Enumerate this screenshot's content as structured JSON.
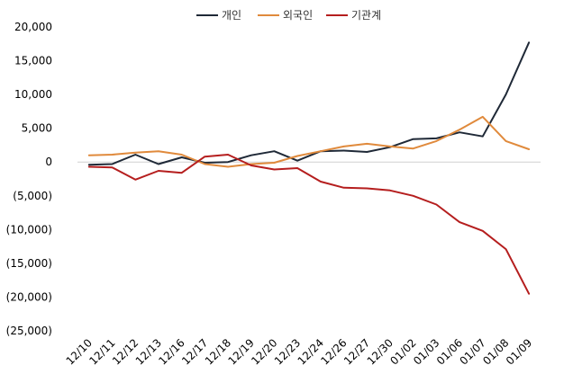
{
  "chart_data": {
    "type": "line",
    "title": "",
    "xlabel": "",
    "ylabel": "",
    "categories": [
      "12/10",
      "12/11",
      "12/12",
      "12/13",
      "12/16",
      "12/17",
      "12/18",
      "12/19",
      "12/20",
      "12/23",
      "12/24",
      "12/26",
      "12/27",
      "12/30",
      "01/02",
      "01/03",
      "01/06",
      "01/07",
      "01/08",
      "01/09"
    ],
    "series": [
      {
        "name": "개인",
        "color": "#1f2937",
        "values": [
          -400,
          -300,
          1100,
          -300,
          700,
          -100,
          0,
          1000,
          1600,
          200,
          1600,
          1700,
          1500,
          2200,
          3400,
          3500,
          4400,
          3800,
          10000,
          17700
        ]
      },
      {
        "name": "외국인",
        "color": "#e08a3c",
        "values": [
          1000,
          1100,
          1400,
          1600,
          1100,
          -300,
          -700,
          -300,
          -100,
          900,
          1600,
          2300,
          2700,
          2300,
          2000,
          3100,
          4800,
          6700,
          3100,
          1900
        ]
      },
      {
        "name": "기관계",
        "color": "#b51e1e",
        "values": [
          -700,
          -800,
          -2600,
          -1300,
          -1600,
          800,
          1100,
          -500,
          -1100,
          -900,
          -2900,
          -3800,
          -3900,
          -4200,
          -5000,
          -6300,
          -8900,
          -10200,
          -12900,
          -19500
        ]
      }
    ],
    "y_ticks": [
      "20,000",
      "15,000",
      "10,000",
      "5,000",
      "0",
      "(5,000)",
      "(10,000)",
      "(15,000)",
      "(20,000)",
      "(25,000)"
    ],
    "y_tick_values": [
      20000,
      15000,
      10000,
      5000,
      0,
      -5000,
      -10000,
      -15000,
      -20000,
      -25000
    ],
    "ylim": [
      -25000,
      20000
    ],
    "negative_tick_color": "#c00000",
    "legend_position": "top-center"
  }
}
